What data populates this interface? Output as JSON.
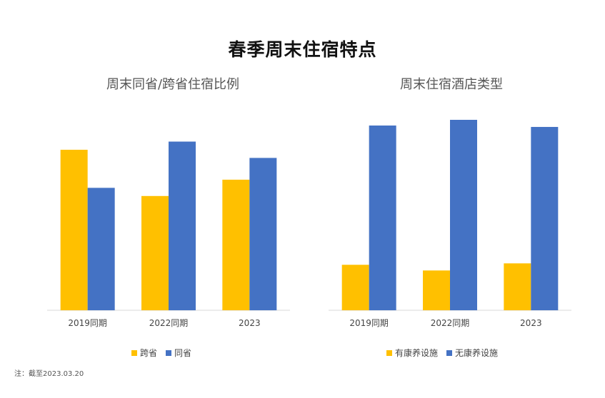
{
  "title": "春季周末住宿特点",
  "note": "注：截至2023.03.20",
  "colors": {
    "series1": "#FFC000",
    "series2": "#4472C4",
    "axis": "#D9D9D9"
  },
  "chart_data": [
    {
      "type": "bar",
      "title": "周末同省/跨省住宿比例",
      "categories": [
        "2019同期",
        "2022同期",
        "2023"
      ],
      "series": [
        {
          "name": "跨省",
          "values": [
            59,
            42,
            48
          ]
        },
        {
          "name": "同省",
          "values": [
            45,
            62,
            56
          ]
        }
      ],
      "ylim": [
        0,
        70
      ],
      "legend": "bottom",
      "grid": false
    },
    {
      "type": "bar",
      "title": "周末住宿酒店类型",
      "categories": [
        "2019同期",
        "2022同期",
        "2023"
      ],
      "series": [
        {
          "name": "有康养设施",
          "values": [
            16,
            14,
            16.5
          ]
        },
        {
          "name": "无康养设施",
          "values": [
            65,
            67,
            64.5
          ]
        }
      ],
      "ylim": [
        0,
        67
      ],
      "legend": "bottom",
      "grid": false
    }
  ]
}
